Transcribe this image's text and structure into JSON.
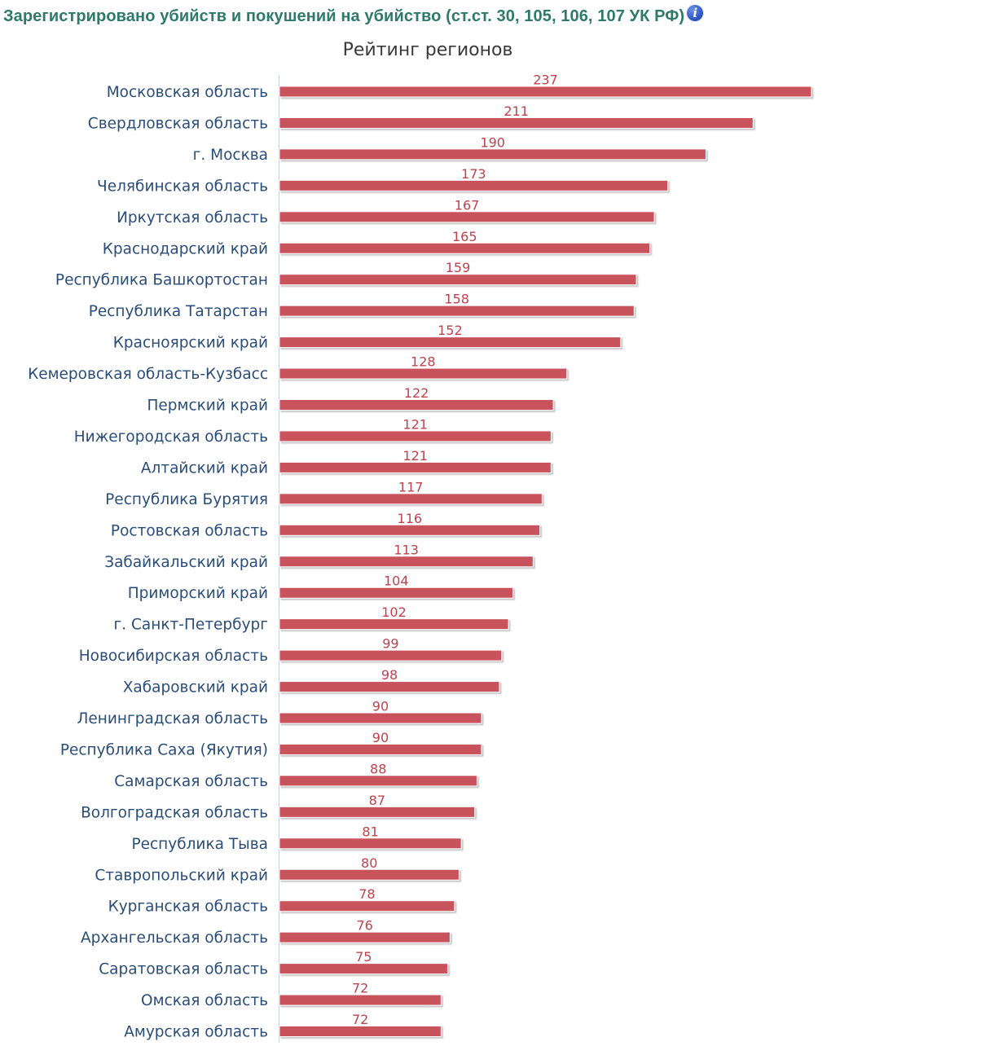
{
  "header": {
    "title": "Зарегистрировано убийств и покушений на убийство (ст.ст. 30, 105, 106, 107 УК РФ)",
    "info_icon": "info-icon"
  },
  "colors": {
    "bar": "#c9525c",
    "bar_shadow": "#cfcfcf",
    "value_label": "#c0424d",
    "category_label": "#2a4d7a",
    "title": "#3a3a3a",
    "axis": "#c8d2dc"
  },
  "chart_data": {
    "type": "bar",
    "orientation": "horizontal",
    "title": "Рейтинг регионов",
    "xlim": [
      0,
      250
    ],
    "grid": false,
    "legend": "none",
    "categories": [
      "Московская область",
      "Свердловская область",
      "г. Москва",
      "Челябинская область",
      "Иркутская область",
      "Краснодарский край",
      "Республика Башкортостан",
      "Республика Татарстан",
      "Красноярский край",
      "Кемеровская область-Кузбасс",
      "Пермский край",
      "Нижегородская область",
      "Алтайский край",
      "Республика Бурятия",
      "Ростовская область",
      "Забайкальский край",
      "Приморский край",
      "г. Санкт-Петербург",
      "Новосибирская область",
      "Хабаровский край",
      "Ленинградская область",
      "Республика Саха (Якутия)",
      "Самарская область",
      "Волгоградская область",
      "Республика Тыва",
      "Ставропольский край",
      "Курганская область",
      "Архангельская область",
      "Саратовская область",
      "Омская область",
      "Амурская область"
    ],
    "values": [
      237,
      211,
      190,
      173,
      167,
      165,
      159,
      158,
      152,
      128,
      122,
      121,
      121,
      117,
      116,
      113,
      104,
      102,
      99,
      98,
      90,
      90,
      88,
      87,
      81,
      80,
      78,
      76,
      75,
      72,
      72
    ]
  }
}
